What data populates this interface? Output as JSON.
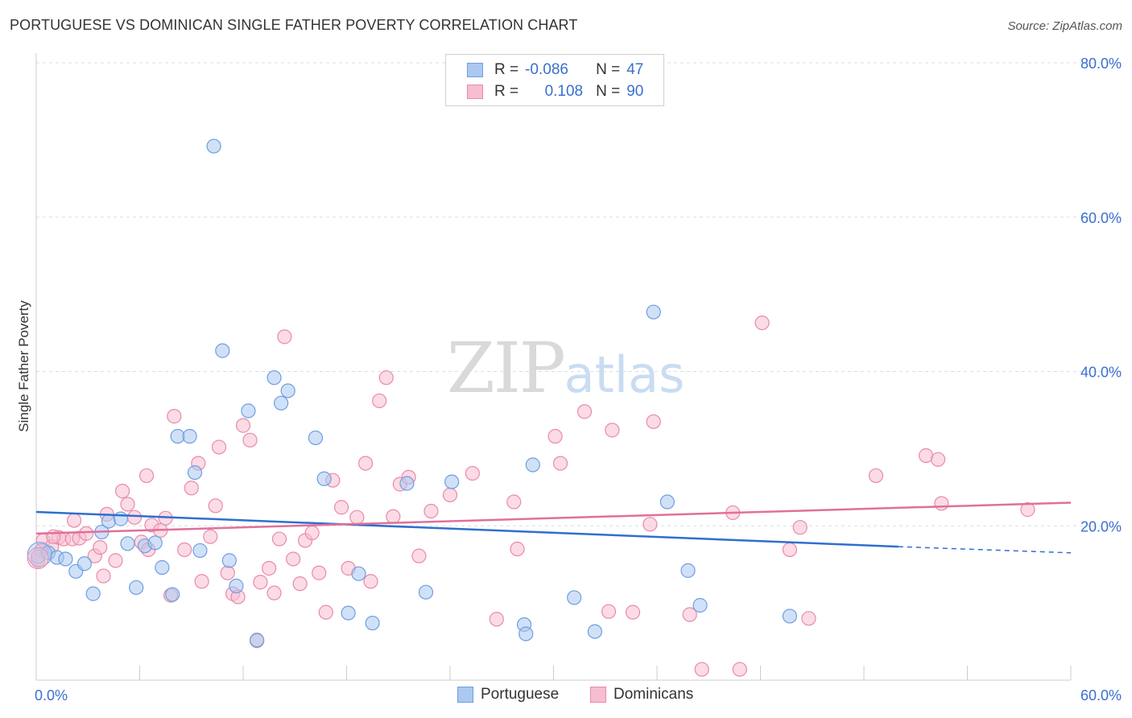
{
  "title": "PORTUGUESE VS DOMINICAN SINGLE FATHER POVERTY CORRELATION CHART",
  "source": "Source: ZipAtlas.com",
  "watermark": {
    "zip": "ZIP",
    "atlas": "atlas"
  },
  "colors": {
    "portuguese_fill": "#aac8f0",
    "portuguese_stroke": "#6f9ee0",
    "portuguese_line": "#2f6fcf",
    "dominicans_fill": "#f7bdd0",
    "dominicans_stroke": "#e98aa9",
    "dominicans_line": "#e0709a",
    "axis_text": "#3a6fd0",
    "grid": "#dddddd"
  },
  "legend": {
    "rows": [
      {
        "r_label": "R =",
        "r_value": "-0.086",
        "n_label": "N =",
        "n_value": "47"
      },
      {
        "r_label": "R =",
        "r_value": "0.108",
        "n_label": "N =",
        "n_value": "90"
      }
    ]
  },
  "bottom_legend": {
    "portuguese": "Portuguese",
    "dominicans": "Dominicans"
  },
  "chart_data": {
    "type": "scatter",
    "title": "PORTUGUESE VS DOMINICAN SINGLE FATHER POVERTY CORRELATION CHART",
    "xlabel": "",
    "ylabel": "Single Father Poverty",
    "xlim": [
      0,
      60
    ],
    "ylim": [
      0,
      80
    ],
    "x_tick_labels": [
      "0.0%",
      "60.0%"
    ],
    "y_tick_labels": [
      "20.0%",
      "40.0%",
      "60.0%",
      "80.0%"
    ],
    "y_ticks": [
      20,
      40,
      60,
      80
    ],
    "grid": true,
    "legend_position": "top-center",
    "series": [
      {
        "name": "Portuguese",
        "r": -0.086,
        "n": 47,
        "trend": {
          "x0": 0,
          "y0": 21.8,
          "x1": 50,
          "y1": 17.3,
          "dashed_to_x": 60,
          "dashed_to_y": 16.5
        },
        "points": [
          [
            0.1,
            16.0
          ],
          [
            0.7,
            16.5
          ],
          [
            1.2,
            15.9
          ],
          [
            1.7,
            15.7
          ],
          [
            2.3,
            14.1
          ],
          [
            2.8,
            15.1
          ],
          [
            3.3,
            11.2
          ],
          [
            3.8,
            19.2
          ],
          [
            4.2,
            20.6
          ],
          [
            4.9,
            20.9
          ],
          [
            5.3,
            17.7
          ],
          [
            5.8,
            12.0
          ],
          [
            6.3,
            17.4
          ],
          [
            6.9,
            17.8
          ],
          [
            7.3,
            14.6
          ],
          [
            7.9,
            11.1
          ],
          [
            8.2,
            31.6
          ],
          [
            8.9,
            31.6
          ],
          [
            9.2,
            26.9
          ],
          [
            9.5,
            16.8
          ],
          [
            10.3,
            69.2
          ],
          [
            10.8,
            42.7
          ],
          [
            11.2,
            15.5
          ],
          [
            11.6,
            12.2
          ],
          [
            12.3,
            34.9
          ],
          [
            12.8,
            5.2
          ],
          [
            13.8,
            39.2
          ],
          [
            14.2,
            35.9
          ],
          [
            14.6,
            37.5
          ],
          [
            16.2,
            31.4
          ],
          [
            16.7,
            26.1
          ],
          [
            18.1,
            8.7
          ],
          [
            18.7,
            13.8
          ],
          [
            19.5,
            7.4
          ],
          [
            21.5,
            25.5
          ],
          [
            22.6,
            11.4
          ],
          [
            24.1,
            25.7
          ],
          [
            28.3,
            7.2
          ],
          [
            28.4,
            6.0
          ],
          [
            28.8,
            27.9
          ],
          [
            31.2,
            10.7
          ],
          [
            32.4,
            6.3
          ],
          [
            35.8,
            47.7
          ],
          [
            36.6,
            23.1
          ],
          [
            37.8,
            14.2
          ],
          [
            38.5,
            9.7
          ],
          [
            43.7,
            8.3
          ]
        ]
      },
      {
        "name": "Dominicans",
        "r": 0.108,
        "n": 90,
        "trend": {
          "x0": 0,
          "y0": 19.0,
          "x1": 60,
          "y1": 23.0
        },
        "points": [
          [
            0.1,
            15.5
          ],
          [
            0.4,
            18.1
          ],
          [
            0.9,
            17.3
          ],
          [
            1.3,
            18.5
          ],
          [
            1.6,
            18.3
          ],
          [
            2.1,
            18.3
          ],
          [
            2.2,
            20.7
          ],
          [
            2.5,
            18.4
          ],
          [
            2.9,
            19.0
          ],
          [
            3.4,
            16.1
          ],
          [
            3.7,
            17.2
          ],
          [
            3.9,
            13.5
          ],
          [
            4.1,
            21.5
          ],
          [
            4.6,
            15.5
          ],
          [
            5.0,
            24.5
          ],
          [
            5.3,
            22.8
          ],
          [
            5.7,
            21.1
          ],
          [
            6.1,
            17.9
          ],
          [
            6.4,
            26.5
          ],
          [
            6.7,
            20.1
          ],
          [
            7.2,
            19.4
          ],
          [
            7.5,
            21.0
          ],
          [
            7.8,
            11.0
          ],
          [
            8.0,
            34.2
          ],
          [
            8.6,
            16.9
          ],
          [
            9.0,
            24.9
          ],
          [
            9.4,
            28.1
          ],
          [
            9.6,
            12.8
          ],
          [
            10.1,
            18.6
          ],
          [
            10.4,
            22.6
          ],
          [
            10.6,
            30.2
          ],
          [
            11.1,
            13.9
          ],
          [
            11.4,
            11.2
          ],
          [
            11.7,
            10.8
          ],
          [
            12.0,
            33.0
          ],
          [
            12.4,
            31.1
          ],
          [
            12.8,
            5.1
          ],
          [
            13.0,
            12.7
          ],
          [
            13.5,
            14.5
          ],
          [
            13.8,
            11.3
          ],
          [
            14.1,
            18.3
          ],
          [
            14.4,
            44.5
          ],
          [
            14.9,
            15.7
          ],
          [
            15.3,
            12.5
          ],
          [
            15.6,
            18.1
          ],
          [
            16.0,
            19.1
          ],
          [
            16.4,
            13.9
          ],
          [
            16.8,
            8.8
          ],
          [
            17.2,
            25.9
          ],
          [
            17.7,
            22.4
          ],
          [
            18.1,
            14.5
          ],
          [
            18.6,
            21.1
          ],
          [
            19.1,
            28.1
          ],
          [
            19.4,
            12.8
          ],
          [
            19.9,
            36.2
          ],
          [
            20.3,
            39.2
          ],
          [
            20.7,
            21.2
          ],
          [
            21.1,
            25.4
          ],
          [
            21.6,
            26.3
          ],
          [
            22.2,
            16.1
          ],
          [
            22.9,
            21.9
          ],
          [
            24.0,
            24.0
          ],
          [
            25.3,
            26.8
          ],
          [
            26.7,
            7.9
          ],
          [
            27.7,
            23.1
          ],
          [
            27.9,
            17.0
          ],
          [
            30.1,
            31.6
          ],
          [
            30.4,
            28.1
          ],
          [
            31.8,
            34.8
          ],
          [
            33.2,
            8.9
          ],
          [
            33.4,
            32.4
          ],
          [
            34.6,
            8.8
          ],
          [
            35.6,
            20.2
          ],
          [
            35.8,
            33.5
          ],
          [
            37.9,
            8.5
          ],
          [
            38.6,
            1.4
          ],
          [
            40.4,
            21.7
          ],
          [
            40.8,
            1.4
          ],
          [
            42.1,
            46.3
          ],
          [
            43.7,
            16.9
          ],
          [
            44.3,
            19.8
          ],
          [
            44.8,
            8.0
          ],
          [
            48.7,
            26.5
          ],
          [
            51.6,
            29.1
          ],
          [
            52.3,
            28.6
          ],
          [
            52.5,
            22.9
          ],
          [
            57.5,
            22.1
          ],
          [
            0.3,
            16.8
          ],
          [
            1.0,
            18.6
          ],
          [
            6.5,
            16.9
          ]
        ]
      }
    ]
  }
}
